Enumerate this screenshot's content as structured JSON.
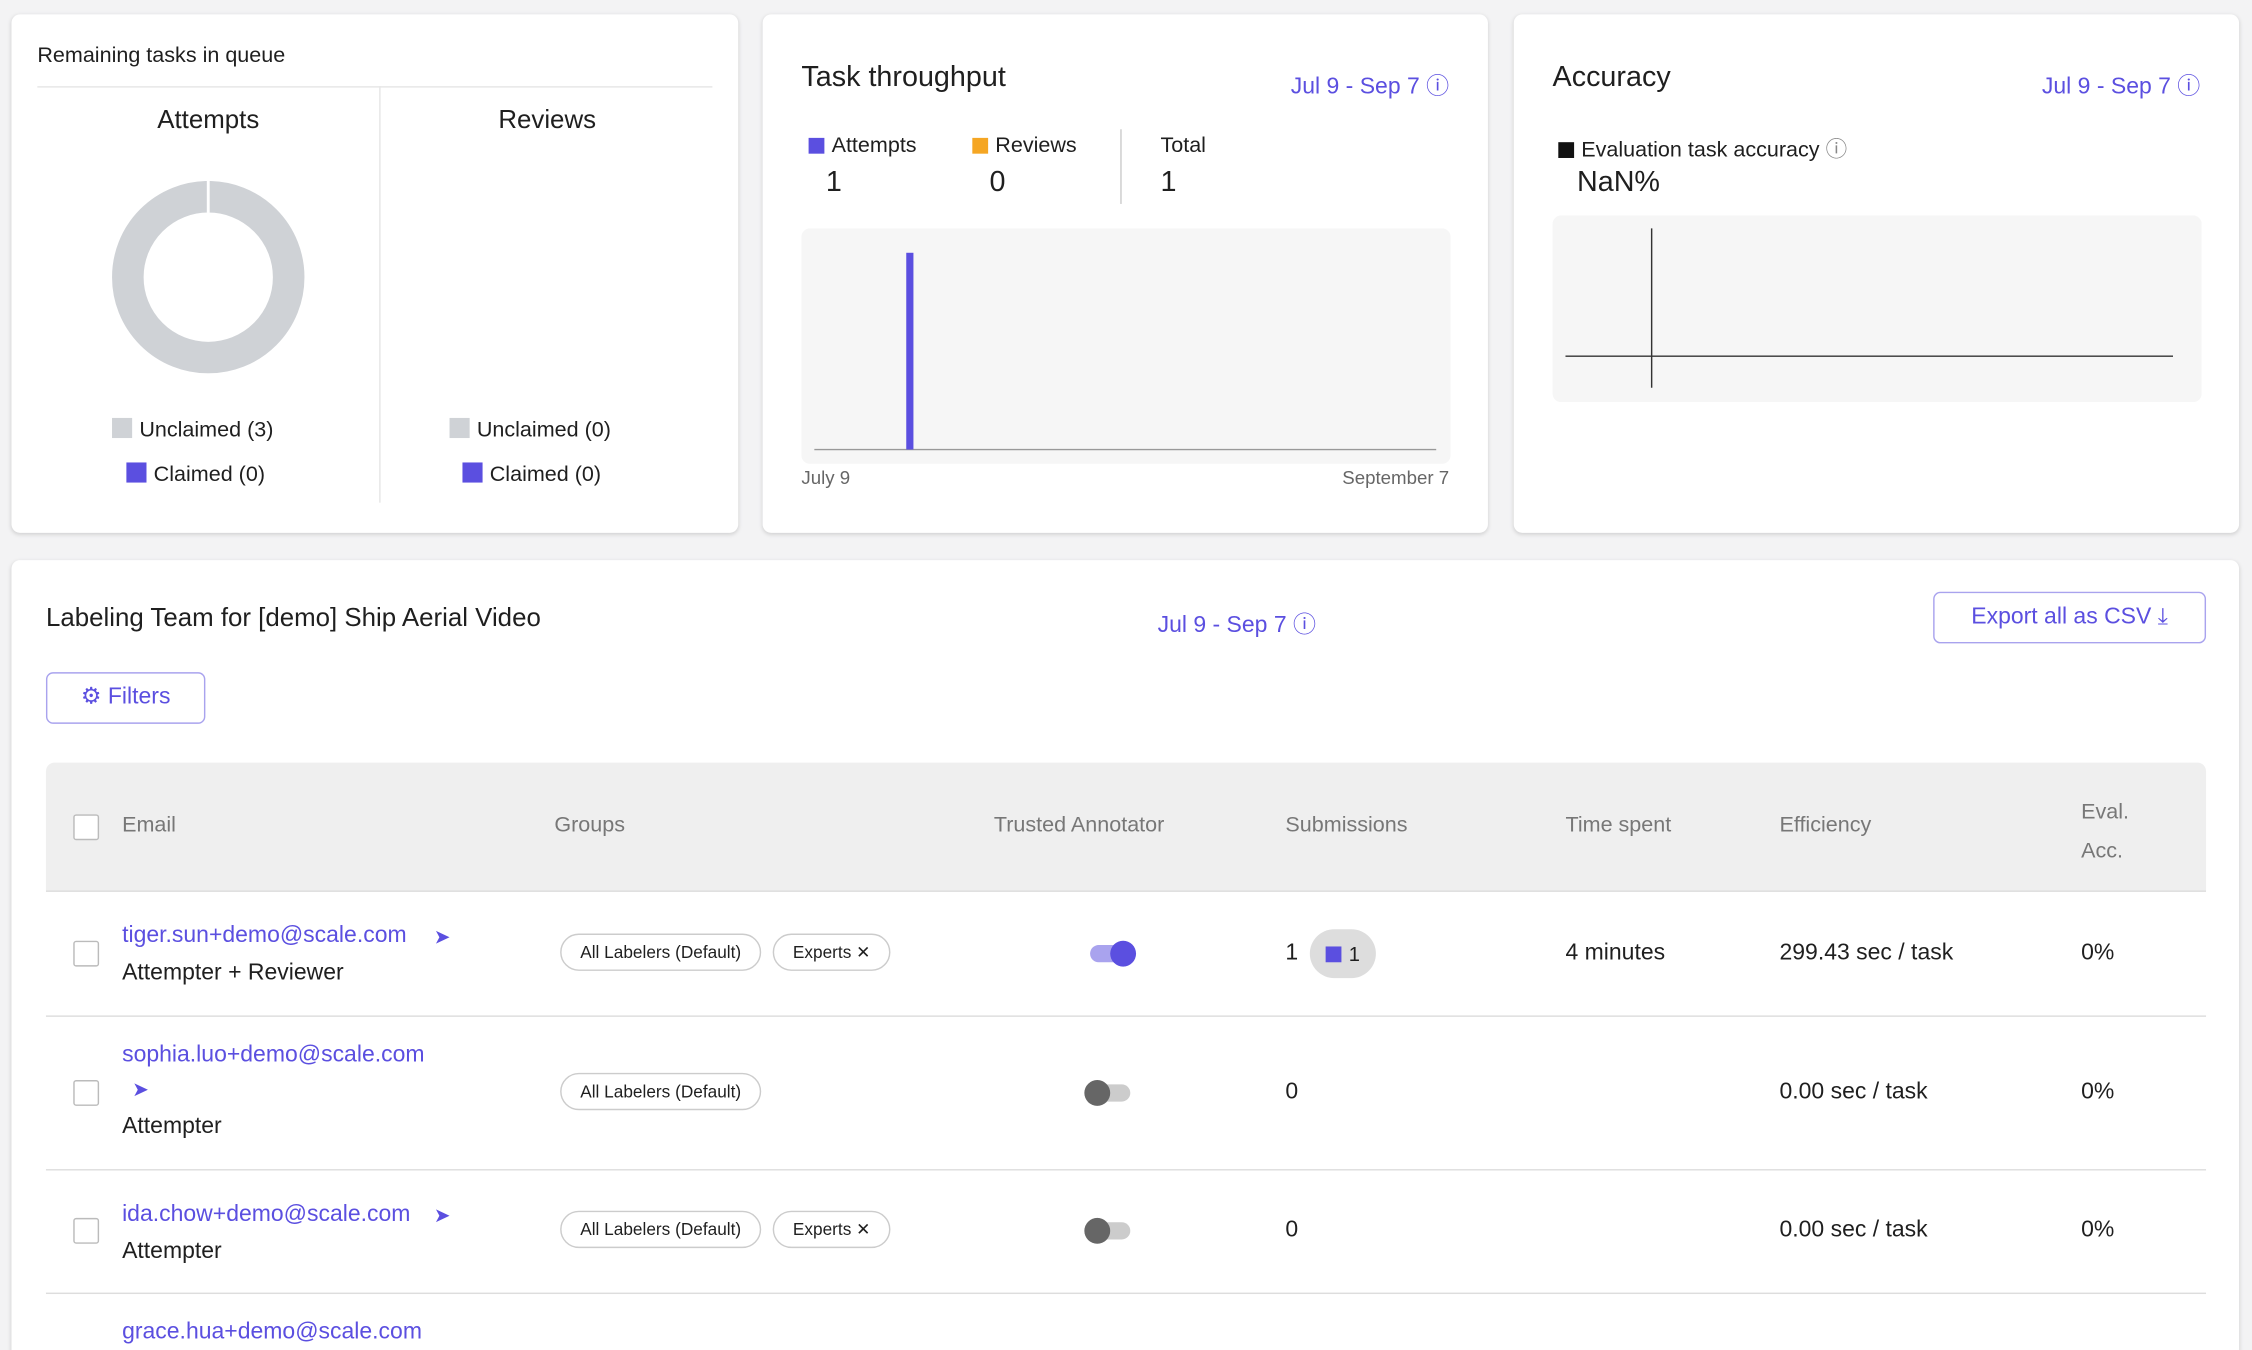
{
  "queue": {
    "title": "Remaining tasks in queue",
    "columns": [
      {
        "title": "Attempts",
        "legend": [
          "Unclaimed (3)",
          "Claimed (0)"
        ]
      },
      {
        "title": "Reviews",
        "legend": [
          "Unclaimed (0)",
          "Claimed (0)"
        ]
      }
    ]
  },
  "throughput": {
    "title": "Task throughput",
    "date_range": "Jul 9 - Sep 7",
    "stats": [
      {
        "label": "Attempts",
        "value": 1
      },
      {
        "label": "Reviews",
        "value": 0
      },
      {
        "label": "Total",
        "value": 1
      }
    ],
    "axis_start": "July 9",
    "axis_end": "September 7"
  },
  "accuracy": {
    "title": "Accuracy",
    "date_range": "Jul 9 - Sep 7",
    "metric": "Evaluation task accuracy",
    "value": "NaN%"
  },
  "team": {
    "title": "Labeling Team for [demo] Ship Aerial Video",
    "date_range": "Jul 9 - Sep 7",
    "export": "Export all as CSV",
    "filters": "Filters",
    "columns": [
      "Email",
      "Groups",
      "Trusted Annotator",
      "Submissions",
      "Time spent",
      "Efficiency",
      "Eval. Acc."
    ],
    "rows": [
      {
        "email": "tiger.sun+demo@scale.com",
        "role": "Attempter + Reviewer",
        "groups": [
          "All Labelers (Default)",
          "Experts"
        ],
        "trusted": true,
        "submissions": 1,
        "badge": 1,
        "time": "4 minutes",
        "efficiency": "299.43 sec / task",
        "eval": "0%"
      },
      {
        "email": "sophia.luo+demo@scale.com",
        "role": "Attempter",
        "groups": [
          "All Labelers (Default)"
        ],
        "trusted": false,
        "submissions": 0,
        "efficiency": "0.00 sec / task",
        "eval": "0%"
      },
      {
        "email": "ida.chow+demo@scale.com",
        "role": "Attempter",
        "groups": [
          "All Labelers (Default)",
          "Experts"
        ],
        "trusted": false,
        "submissions": 0,
        "efficiency": "0.00 sec / task",
        "eval": "0%"
      },
      {
        "email": "grace.hua+demo@scale.com"
      }
    ]
  }
}
